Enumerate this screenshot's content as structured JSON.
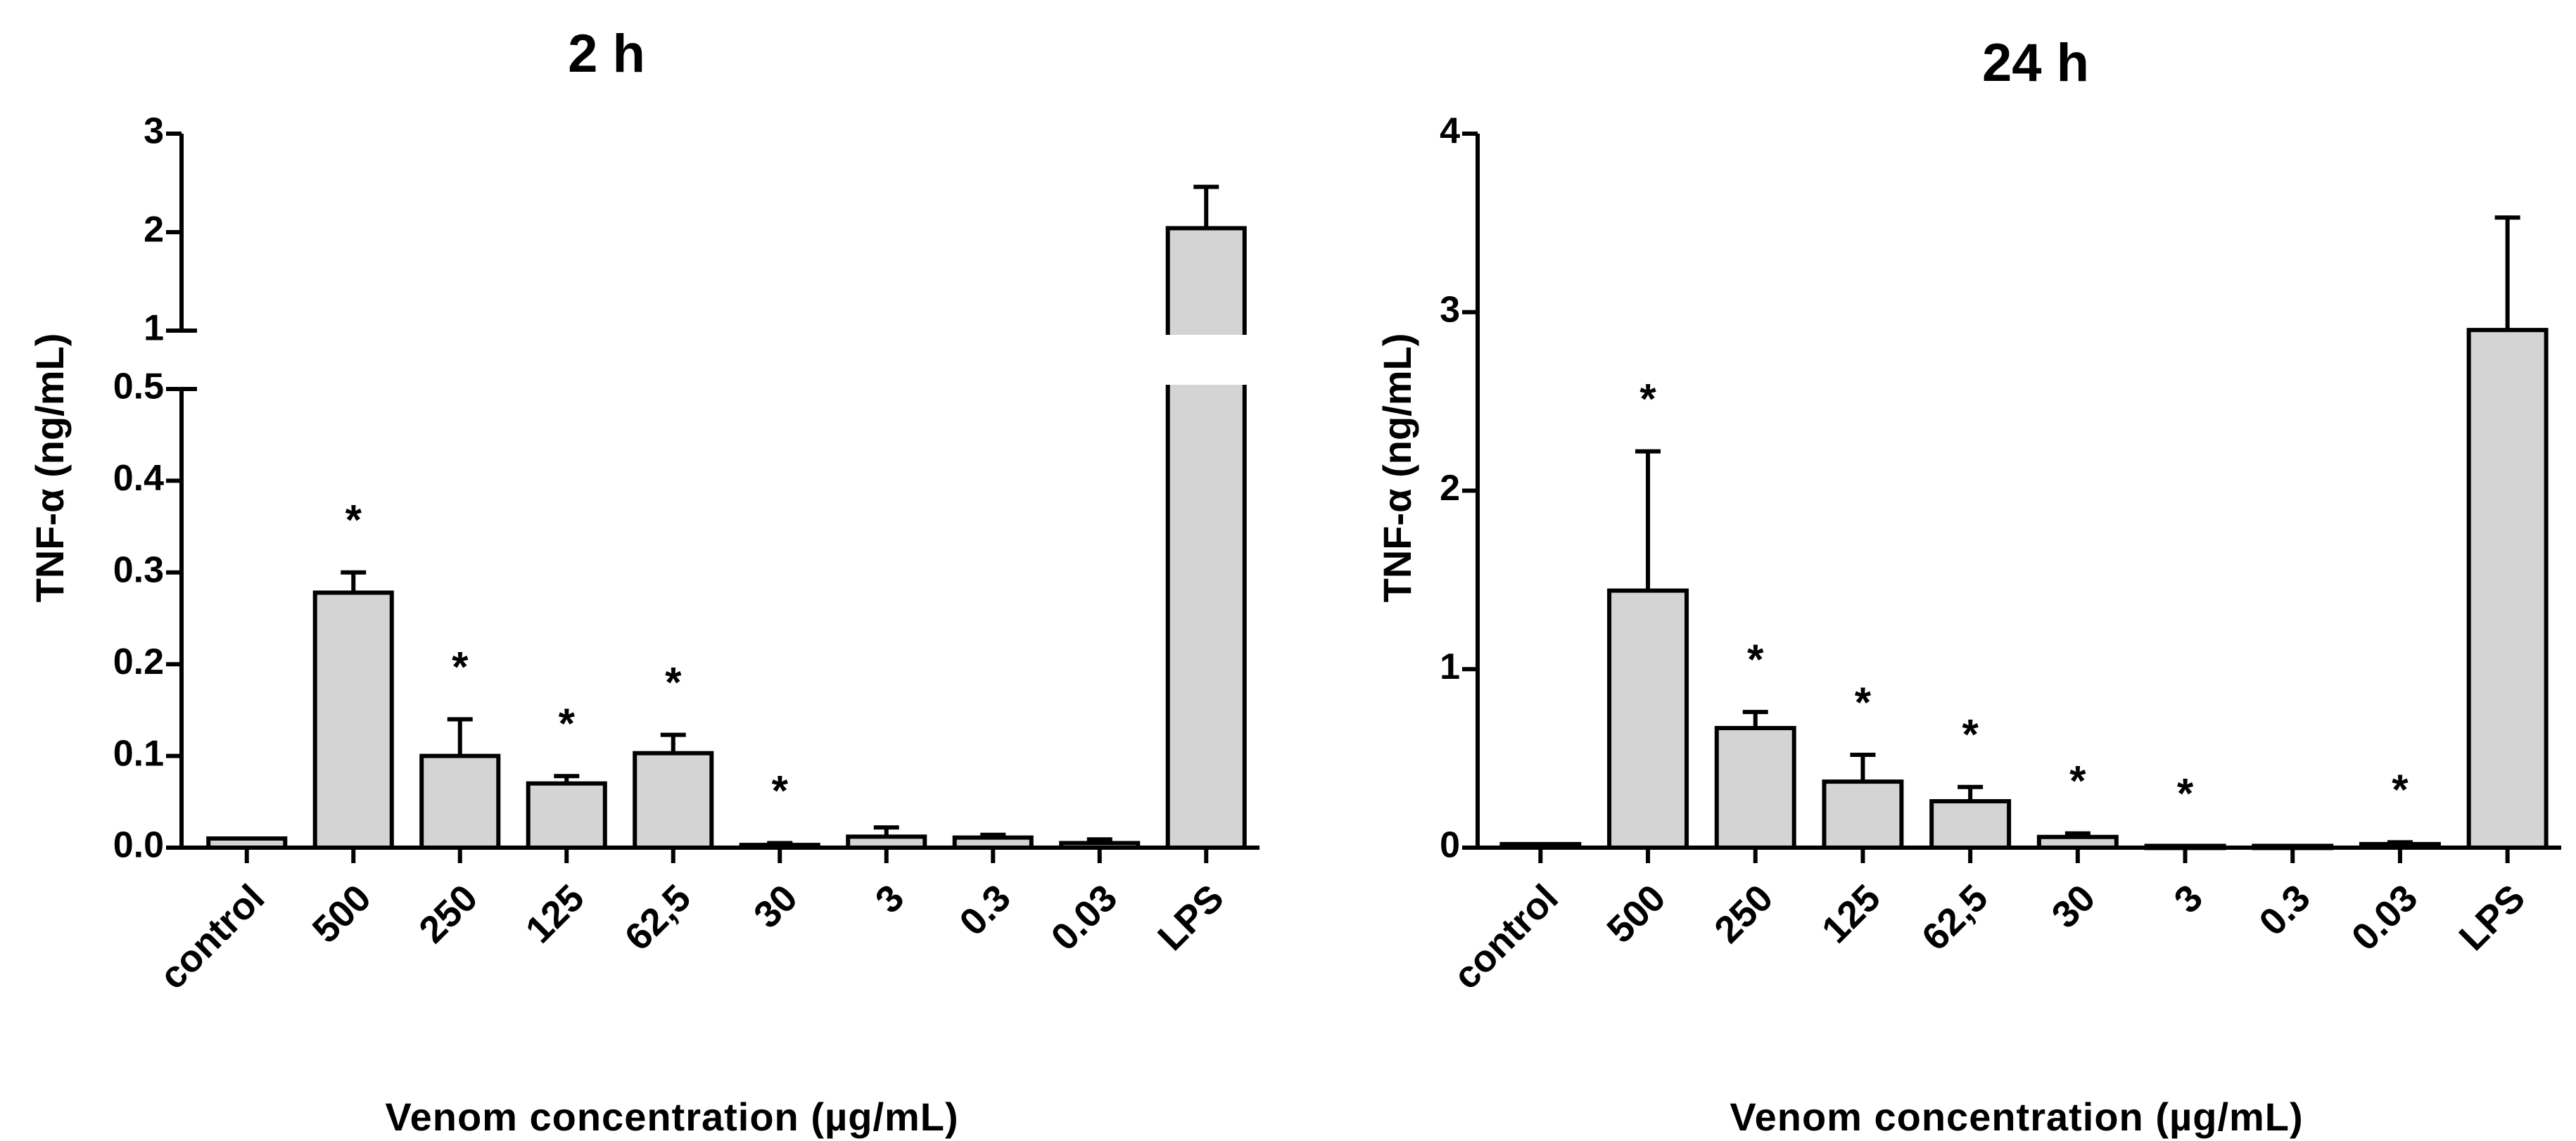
{
  "chart_data": [
    {
      "type": "bar",
      "title": "2 h",
      "ylabel": "TNF-α (ng/mL)",
      "xlabel": "Venom concentration (µg/mL)",
      "categories": [
        "control",
        "500",
        "250",
        "125",
        "62,5",
        "30",
        "3",
        "0.3",
        "0.03",
        "LPS"
      ],
      "values": [
        0.01,
        0.278,
        0.1,
        0.07,
        0.103,
        0.003,
        0.012,
        0.011,
        0.005,
        2.04
      ],
      "errors": [
        0.0,
        0.022,
        0.04,
        0.008,
        0.02,
        0.002,
        0.01,
        0.003,
        0.004,
        0.42
      ],
      "significant": [
        false,
        true,
        true,
        true,
        true,
        true,
        false,
        false,
        false,
        false
      ],
      "annotation": "*",
      "ylim": [
        0,
        3
      ],
      "axis_break": [
        0.5,
        1
      ],
      "yticks_lower": [
        "0.0",
        "0.1",
        "0.2",
        "0.3",
        "0.4",
        "0.5"
      ],
      "yticks_upper": [
        "1",
        "2",
        "3"
      ],
      "bar_color": "#d4d4d4"
    },
    {
      "type": "bar",
      "title": "24 h",
      "ylabel": "TNF-α (ng/mL)",
      "xlabel": "Venom concentration (µg/mL)",
      "categories": [
        "control",
        "500",
        "250",
        "125",
        "62,5",
        "30",
        "3",
        "0.3",
        "0.03",
        "LPS"
      ],
      "values": [
        0.02,
        1.44,
        0.67,
        0.37,
        0.26,
        0.06,
        0.01,
        0.01,
        0.02,
        2.9
      ],
      "errors": [
        0.0,
        0.78,
        0.09,
        0.15,
        0.08,
        0.02,
        0.0,
        0.0,
        0.01,
        0.63
      ],
      "significant": [
        false,
        true,
        true,
        true,
        true,
        true,
        true,
        false,
        true,
        false
      ],
      "annotation": "*",
      "ylim": [
        0,
        4
      ],
      "yticks": [
        "0",
        "1",
        "2",
        "3",
        "4"
      ],
      "bar_color": "#d4d4d4"
    }
  ]
}
